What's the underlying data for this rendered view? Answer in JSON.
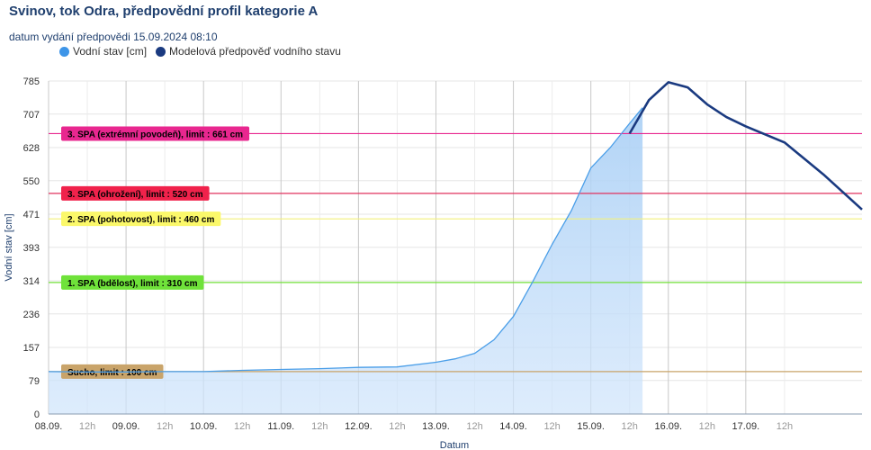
{
  "chart_data": {
    "type": "line",
    "title": "Svinov, tok Odra, předpovědní profil kategorie A",
    "subtitle": "datum vydání předpovědi 15.09.2024 08:10",
    "xlabel": "Datum",
    "ylabel": "Vodní stav [cm]",
    "ylim": [
      0,
      785
    ],
    "y_ticks": [
      0,
      79,
      157,
      236,
      314,
      393,
      471,
      550,
      628,
      707,
      785
    ],
    "xlim": [
      "2024-09-08T00:00",
      "2024-09-18T12:00"
    ],
    "x_ticks": [
      {
        "label": "08.09.",
        "x": "2024-09-08T00:00",
        "major": true
      },
      {
        "label": "12h",
        "x": "2024-09-08T12:00",
        "major": false
      },
      {
        "label": "09.09.",
        "x": "2024-09-09T00:00",
        "major": true
      },
      {
        "label": "12h",
        "x": "2024-09-09T12:00",
        "major": false
      },
      {
        "label": "10.09.",
        "x": "2024-09-10T00:00",
        "major": true
      },
      {
        "label": "12h",
        "x": "2024-09-10T12:00",
        "major": false
      },
      {
        "label": "11.09.",
        "x": "2024-09-11T00:00",
        "major": true
      },
      {
        "label": "12h",
        "x": "2024-09-11T12:00",
        "major": false
      },
      {
        "label": "12.09.",
        "x": "2024-09-12T00:00",
        "major": true
      },
      {
        "label": "12h",
        "x": "2024-09-12T12:00",
        "major": false
      },
      {
        "label": "13.09.",
        "x": "2024-09-13T00:00",
        "major": true
      },
      {
        "label": "12h",
        "x": "2024-09-13T12:00",
        "major": false
      },
      {
        "label": "14.09.",
        "x": "2024-09-14T00:00",
        "major": true
      },
      {
        "label": "12h",
        "x": "2024-09-14T12:00",
        "major": false
      },
      {
        "label": "15.09.",
        "x": "2024-09-15T00:00",
        "major": true
      },
      {
        "label": "12h",
        "x": "2024-09-15T12:00",
        "major": false
      },
      {
        "label": "16.09.",
        "x": "2024-09-16T00:00",
        "major": true
      },
      {
        "label": "12h",
        "x": "2024-09-16T12:00",
        "major": false
      },
      {
        "label": "17.09.",
        "x": "2024-09-17T00:00",
        "major": true
      },
      {
        "label": "12h",
        "x": "2024-09-17T12:00",
        "major": false
      }
    ],
    "grid": true,
    "legend_position": "top-left",
    "series": [
      {
        "name": "Vodní stav [cm]",
        "color": "#4a9ee8",
        "fill": "#cfe4fb",
        "points": [
          [
            "2024-09-08T00:00",
            100
          ],
          [
            "2024-09-08T12:00",
            99
          ],
          [
            "2024-09-09T00:00",
            99
          ],
          [
            "2024-09-09T12:00",
            100
          ],
          [
            "2024-09-10T00:00",
            100
          ],
          [
            "2024-09-10T12:00",
            103
          ],
          [
            "2024-09-11T00:00",
            105
          ],
          [
            "2024-09-11T12:00",
            107
          ],
          [
            "2024-09-12T00:00",
            110
          ],
          [
            "2024-09-12T12:00",
            111
          ],
          [
            "2024-09-13T00:00",
            122
          ],
          [
            "2024-09-13T06:00",
            130
          ],
          [
            "2024-09-13T12:00",
            143
          ],
          [
            "2024-09-13T18:00",
            175
          ],
          [
            "2024-09-14T00:00",
            230
          ],
          [
            "2024-09-14T06:00",
            312
          ],
          [
            "2024-09-14T12:00",
            400
          ],
          [
            "2024-09-14T18:00",
            480
          ],
          [
            "2024-09-15T00:00",
            580
          ],
          [
            "2024-09-15T06:00",
            628
          ],
          [
            "2024-09-15T12:00",
            685
          ],
          [
            "2024-09-15T16:00",
            722
          ]
        ]
      },
      {
        "name": "Modelová předpověď vodního stavu",
        "color": "#1a3a80",
        "points": [
          [
            "2024-09-15T12:00",
            661
          ],
          [
            "2024-09-15T18:00",
            740
          ],
          [
            "2024-09-16T00:00",
            782
          ],
          [
            "2024-09-16T06:00",
            770
          ],
          [
            "2024-09-16T12:00",
            730
          ],
          [
            "2024-09-16T18:00",
            700
          ],
          [
            "2024-09-17T00:00",
            678
          ],
          [
            "2024-09-17T12:00",
            640
          ],
          [
            "2024-09-18T00:00",
            565
          ],
          [
            "2024-09-18T12:00",
            482
          ]
        ]
      }
    ],
    "thresholds": [
      {
        "label": "3. SPA (extrémní povodeň), limit : 661 cm",
        "value": 661,
        "color": "#e8278f",
        "label_bg": "#e8278f"
      },
      {
        "label": "3. SPA (ohrožení), limit : 520 cm",
        "value": 520,
        "color": "#e0325e",
        "label_bg": "#f0224b"
      },
      {
        "label": "2. SPA (pohotovost), limit : 460 cm",
        "value": 460,
        "color": "#f3f07a",
        "label_bg": "#fbf86a"
      },
      {
        "label": "1. SPA (bdělost), limit : 310 cm",
        "value": 310,
        "color": "#72e03a",
        "label_bg": "#6fe23a"
      },
      {
        "label": "Sucho, limit : 100 cm",
        "value": 100,
        "color": "#c9a46a",
        "label_bg": "#c9a46a"
      }
    ]
  }
}
